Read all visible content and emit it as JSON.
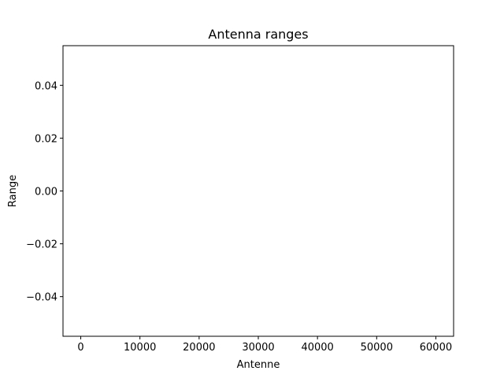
{
  "chart_data": {
    "type": "line",
    "title": "Antenna ranges",
    "xlabel": "Antenne",
    "ylabel": "Range",
    "xlim": [
      -3000,
      63000
    ],
    "ylim": [
      -0.055,
      0.055
    ],
    "x_ticks": [
      0,
      10000,
      20000,
      30000,
      40000,
      50000,
      60000
    ],
    "x_tick_labels": [
      "0",
      "10000",
      "20000",
      "30000",
      "40000",
      "50000",
      "60000"
    ],
    "y_ticks": [
      -0.04,
      -0.02,
      0.0,
      0.02,
      0.04
    ],
    "y_tick_labels": [
      "−0.04",
      "−0.02",
      "0.00",
      "0.02",
      "0.04"
    ],
    "grid": false,
    "series": [
      {
        "x": [],
        "y": []
      }
    ],
    "colors": {
      "axis": "#000000",
      "background": "#ffffff"
    }
  }
}
